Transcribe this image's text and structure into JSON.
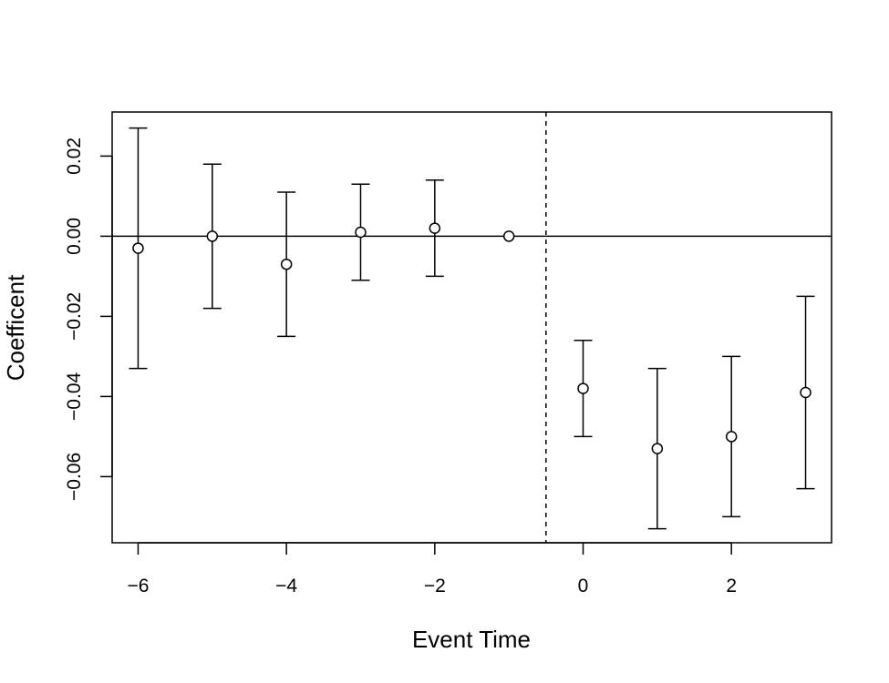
{
  "chart_data": {
    "type": "scatter",
    "title": "",
    "xlabel": "Event Time",
    "ylabel": "Coefficent",
    "xlim": [
      -6.35,
      3.35
    ],
    "ylim": [
      -0.0765,
      0.031
    ],
    "x_ticks": [
      -6,
      -4,
      -2,
      0,
      2
    ],
    "x_tick_labels": [
      "−6",
      "−4",
      "−2",
      "0",
      "2"
    ],
    "y_ticks": [
      -0.06,
      -0.04,
      -0.02,
      0.0,
      0.02
    ],
    "y_tick_labels": [
      "−0.06",
      "−0.04",
      "−0.02",
      "0.00",
      "0.02"
    ],
    "reference_hline": 0.0,
    "reference_vline": -0.5,
    "grid": false,
    "legend": "none",
    "series": [
      {
        "points": [
          {
            "x": -6,
            "y": -0.003,
            "lower": -0.033,
            "upper": 0.027
          },
          {
            "x": -5,
            "y": 0.0,
            "lower": -0.018,
            "upper": 0.018
          },
          {
            "x": -4,
            "y": -0.007,
            "lower": -0.025,
            "upper": 0.011
          },
          {
            "x": -3,
            "y": 0.001,
            "lower": -0.011,
            "upper": 0.013
          },
          {
            "x": -2,
            "y": 0.002,
            "lower": -0.01,
            "upper": 0.014
          },
          {
            "x": -1,
            "y": 0.0,
            "lower": null,
            "upper": null
          },
          {
            "x": 0,
            "y": -0.038,
            "lower": -0.05,
            "upper": -0.026
          },
          {
            "x": 1,
            "y": -0.053,
            "lower": -0.073,
            "upper": -0.033
          },
          {
            "x": 2,
            "y": -0.05,
            "lower": -0.07,
            "upper": -0.03
          },
          {
            "x": 3,
            "y": -0.039,
            "lower": -0.063,
            "upper": -0.015
          }
        ]
      }
    ]
  }
}
